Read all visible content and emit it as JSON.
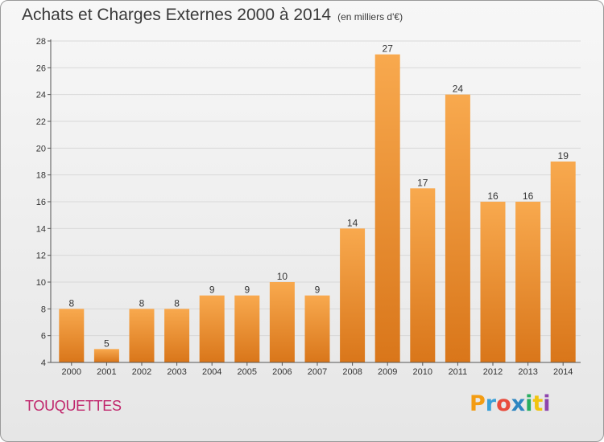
{
  "header": {
    "title": "Achats et Charges Externes 2000 à 2014",
    "subtitle": "(en milliers d'€)"
  },
  "footer": {
    "commune": "TOUQUETTES",
    "logo_text": "Proxiti",
    "logo_colors": [
      "#f39c12",
      "#3aa0d8",
      "#e84c3d",
      "#2e86c1",
      "#27ae60",
      "#f1c40f",
      "#8e44ad"
    ]
  },
  "colors": {
    "bar_top": "#f8a94e",
    "bar_bottom": "#d9761a",
    "grid": "#d8d8d8",
    "axis": "#555555",
    "title": "#3a3a3a",
    "commune": "#c0246b"
  },
  "chart_data": {
    "type": "bar",
    "title": "Achats et Charges Externes 2000 à 2014",
    "subtitle": "(en milliers d'€)",
    "xlabel": "",
    "ylabel": "",
    "categories": [
      "2000",
      "2001",
      "2002",
      "2003",
      "2004",
      "2005",
      "2006",
      "2007",
      "2008",
      "2009",
      "2010",
      "2011",
      "2012",
      "2013",
      "2014"
    ],
    "values": [
      8,
      5,
      8,
      8,
      9,
      9,
      10,
      9,
      14,
      27,
      17,
      24,
      16,
      16,
      19
    ],
    "value_labels": [
      "8",
      "5",
      "8",
      "8",
      "9",
      "9",
      "10",
      "9",
      "14",
      "27",
      "17",
      "24",
      "16",
      "16",
      "19"
    ],
    "ylim": [
      4,
      28
    ],
    "yticks": [
      4,
      6,
      8,
      10,
      12,
      14,
      16,
      18,
      20,
      22,
      24,
      26,
      28
    ],
    "ytick_labels": [
      "4",
      "6",
      "8",
      "10",
      "12",
      "14",
      "16",
      "18",
      "20",
      "22",
      "24",
      "26",
      "28"
    ],
    "grid": "horizontal",
    "legend": "none"
  }
}
